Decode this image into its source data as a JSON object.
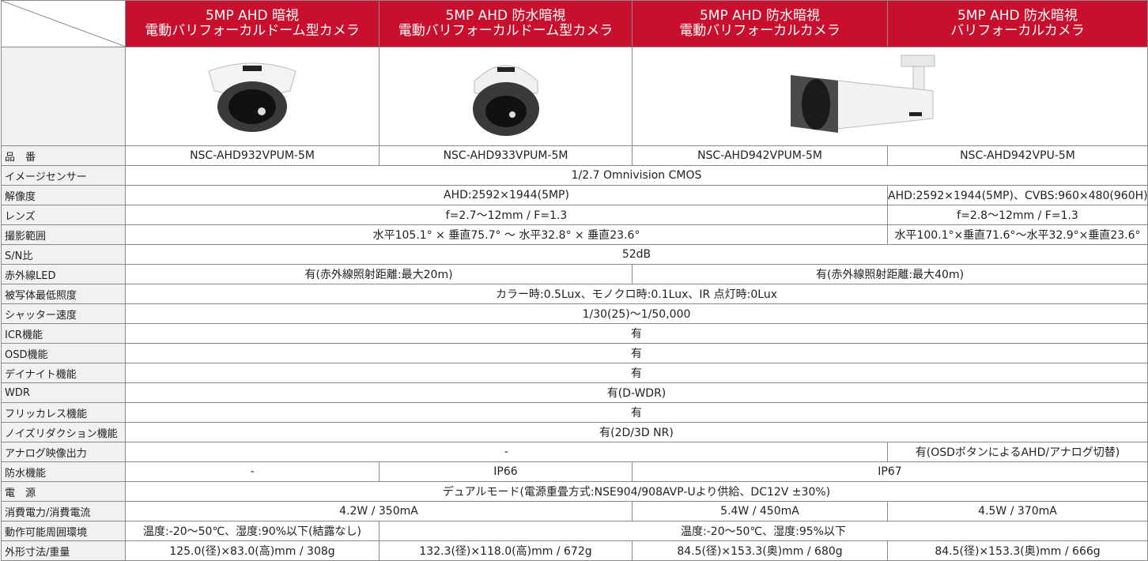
{
  "header": {
    "columns": [
      {
        "line1": "5MP AHD 暗視",
        "line2": "電動バリフォーカルドーム型カメラ"
      },
      {
        "line1": "5MP AHD 防水暗視",
        "line2": "電動バリフォーカルドーム型カメラ"
      },
      {
        "line1": "5MP AHD 防水暗視",
        "line2": "電動バリフォーカルカメラ"
      },
      {
        "line1": "5MP AHD 防水暗視",
        "line2": "バリフォーカルカメラ"
      }
    ]
  },
  "table": {
    "rows": [
      {
        "label": "品　番",
        "cells": [
          "NSC-AHD932VPUM-5M",
          "NSC-AHD933VPUM-5M",
          "NSC-AHD942VPUM-5M",
          "NSC-AHD942VPU-5M"
        ]
      },
      {
        "label": "イメージセンサー",
        "cells": [
          "1/2.7 Omnivision CMOS"
        ]
      },
      {
        "label": "解像度",
        "cells": [
          "AHD:2592×1944(5MP)",
          "AHD:2592×1944(5MP)、CVBS:960×480(960H)"
        ]
      },
      {
        "label": "レンズ",
        "cells": [
          "f=2.7〜12mm / F=1.3",
          "f=2.8〜12mm / F=1.3"
        ]
      },
      {
        "label": "撮影範囲",
        "cells": [
          "水平105.1° × 垂直75.7° 〜 水平32.8° × 垂直23.6°",
          "水平100.1°×垂直71.6°〜水平32.9°×垂直23.6°"
        ]
      },
      {
        "label": "S/N比",
        "cells": [
          "52dB"
        ]
      },
      {
        "label": "赤外線LED",
        "cells": [
          "有(赤外線照射距離:最大20m)",
          "有(赤外線照射距離:最大40m)"
        ]
      },
      {
        "label": "被写体最低照度",
        "cells": [
          "カラー時:0.5Lux、モノクロ時:0.1Lux、IR 点灯時:0Lux"
        ]
      },
      {
        "label": "シャッター速度",
        "cells": [
          "1/30(25)〜1/50,000"
        ]
      },
      {
        "label": "ICR機能",
        "cells": [
          "有"
        ]
      },
      {
        "label": "OSD機能",
        "cells": [
          "有"
        ]
      },
      {
        "label": "デイナイト機能",
        "cells": [
          "有"
        ]
      },
      {
        "label": "WDR",
        "cells": [
          "有(D-WDR)"
        ]
      },
      {
        "label": "フリッカレス機能",
        "cells": [
          "有"
        ]
      },
      {
        "label": "ノイズリダクション機能",
        "cells": [
          "有(2D/3D NR)"
        ]
      },
      {
        "label": "アナログ映像出力",
        "cells": [
          "-",
          "有(OSDボタンによるAHD/アナログ切替)"
        ]
      },
      {
        "label": "防水機能",
        "cells": [
          "-",
          "IP66",
          "IP67"
        ]
      },
      {
        "label": "電　源",
        "cells": [
          "デュアルモード(電源重畳方式:NSE904/908AVP-Uより供給、DC12V ±30%)"
        ]
      },
      {
        "label": "消費電力/消費電流",
        "cells": [
          "4.2W / 350mA",
          "5.4W / 450mA",
          "4.5W / 370mA"
        ]
      },
      {
        "label": "動作可能周囲環境",
        "cells": [
          "温度:-20〜50℃、湿度:90%以下(結露なし)",
          "温度:-20〜50℃、湿度:95%以下"
        ]
      },
      {
        "label": "外形寸法/重量",
        "cells": [
          "125.0(径)×83.0(高)mm / 308g",
          "132.3(径)×118.0(高)mm / 672g",
          "84.5(径)×153.3(奥)mm / 680g",
          "84.5(径)×153.3(奥)mm / 666g"
        ]
      }
    ]
  }
}
